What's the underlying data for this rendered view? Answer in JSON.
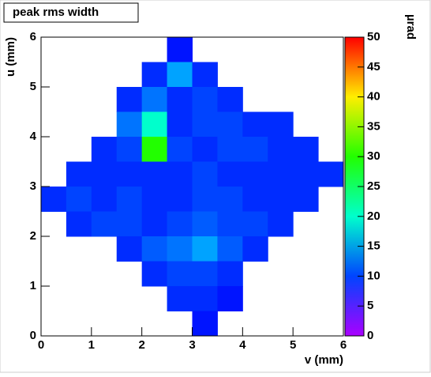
{
  "chart_data": {
    "type": "heatmap",
    "title": "peak rms width",
    "x_label": "v (mm)",
    "y_label": "u (mm)",
    "z_label": "µrad",
    "x": [
      0.25,
      0.75,
      1.25,
      1.75,
      2.25,
      2.75,
      3.25,
      3.75,
      4.25,
      4.75,
      5.25,
      5.75
    ],
    "y": [
      5.75,
      5.25,
      4.75,
      4.25,
      3.75,
      3.25,
      2.75,
      2.25,
      1.75,
      1.25,
      0.75,
      0.25
    ],
    "z": [
      [
        null,
        null,
        null,
        null,
        null,
        8,
        null,
        null,
        null,
        null,
        null,
        null
      ],
      [
        null,
        null,
        null,
        null,
        9,
        14,
        9,
        null,
        null,
        null,
        null,
        null
      ],
      [
        null,
        null,
        null,
        9,
        12,
        9,
        10,
        9,
        null,
        null,
        null,
        null
      ],
      [
        null,
        null,
        null,
        12,
        20,
        9,
        10,
        10,
        9,
        9,
        null,
        null
      ],
      [
        null,
        null,
        9,
        10,
        30,
        10,
        9,
        10,
        10,
        9,
        9,
        null
      ],
      [
        null,
        9,
        9,
        9,
        9,
        9,
        10,
        9,
        9,
        9,
        9,
        9
      ],
      [
        9,
        10,
        9,
        10,
        9,
        9,
        10,
        10,
        9,
        9,
        9,
        null
      ],
      [
        null,
        9,
        10,
        10,
        9,
        10,
        11,
        10,
        10,
        9,
        null,
        null
      ],
      [
        null,
        null,
        null,
        9,
        11,
        12,
        14,
        11,
        9,
        null,
        null,
        null
      ],
      [
        null,
        null,
        null,
        null,
        9,
        10,
        10,
        9,
        null,
        null,
        null,
        null
      ],
      [
        null,
        null,
        null,
        null,
        null,
        9,
        9,
        8,
        null,
        null,
        null,
        null
      ],
      [
        null,
        null,
        null,
        null,
        null,
        null,
        8,
        null,
        null,
        null,
        null,
        null
      ]
    ],
    "xlim": [
      0,
      6
    ],
    "xticks": [
      0,
      1,
      2,
      3,
      4,
      5,
      6
    ],
    "ylim": [
      0,
      6
    ],
    "yticks": [
      0,
      1,
      2,
      3,
      4,
      5,
      6
    ],
    "zlim": [
      0,
      50
    ],
    "zticks": [
      0,
      5,
      10,
      15,
      20,
      25,
      30,
      35,
      40,
      45,
      50
    ]
  }
}
